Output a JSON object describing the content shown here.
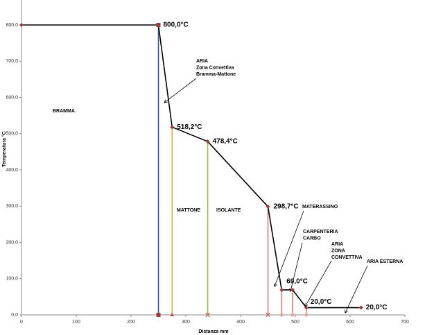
{
  "chart_data": {
    "type": "line",
    "x_label": "Distanza mm",
    "y_label": "Temperatura °C",
    "x": [
      0,
      250,
      275,
      340,
      450,
      475,
      495,
      520,
      620
    ],
    "series": [
      {
        "color": "#000000",
        "marker_color": "#9b3b3b",
        "values": [
          800,
          800,
          518.2,
          478.4,
          298.7,
          69,
          69,
          20,
          20
        ],
        "value_labels": [
          null,
          "800,0°C",
          "518,2°C",
          "478,4°C",
          "298,7°C",
          "69,0°C",
          null,
          "20,0°C",
          "20,0°C"
        ]
      }
    ],
    "boundaries": [
      {
        "x": 250,
        "value": 800,
        "color": "#2f5597"
      },
      {
        "x": 275,
        "value": 518.2,
        "color": "#f0a830"
      },
      {
        "x": 340,
        "value": 478.4,
        "color": "#8fc14a"
      },
      {
        "x": 450,
        "value": 298.7,
        "color": "#e07a7a"
      },
      {
        "x": 475,
        "value": 69,
        "color": "#e07a7a"
      },
      {
        "x": 495,
        "value": 69,
        "color": "#e07a7a"
      },
      {
        "x": 520,
        "value": 20,
        "color": "#e07a7a"
      }
    ],
    "annotations": [
      [
        "BRAMMA"
      ],
      [
        "ARIA",
        "Zona Convettiva",
        "Bramma-Mattone"
      ],
      [
        "MATTONE"
      ],
      [
        "ISOLANTE"
      ],
      [
        "MATERASSINO"
      ],
      [
        "CARPENTERIA",
        "CARBO"
      ],
      [
        "ARIA",
        "ZONA",
        "CONVETTIVA"
      ],
      [
        "ARIA ESTERNA"
      ]
    ],
    "xlim": [
      0,
      700
    ],
    "ylim": [
      0,
      860
    ],
    "xticks": [
      0,
      100,
      200,
      300,
      400,
      500,
      600,
      700
    ],
    "yticks": [
      {
        "value": 0,
        "label": "0,0"
      },
      {
        "value": 100,
        "label": "100,0"
      },
      {
        "value": 200,
        "label": "200,0"
      },
      {
        "value": 300,
        "label": "300,0"
      },
      {
        "value": 400,
        "label": "400,0"
      },
      {
        "value": 500,
        "label": "500,0"
      },
      {
        "value": 600,
        "label": "600,0"
      },
      {
        "value": 700,
        "label": "700,0"
      },
      {
        "value": 800,
        "label": "800,0"
      }
    ],
    "grid": false
  }
}
